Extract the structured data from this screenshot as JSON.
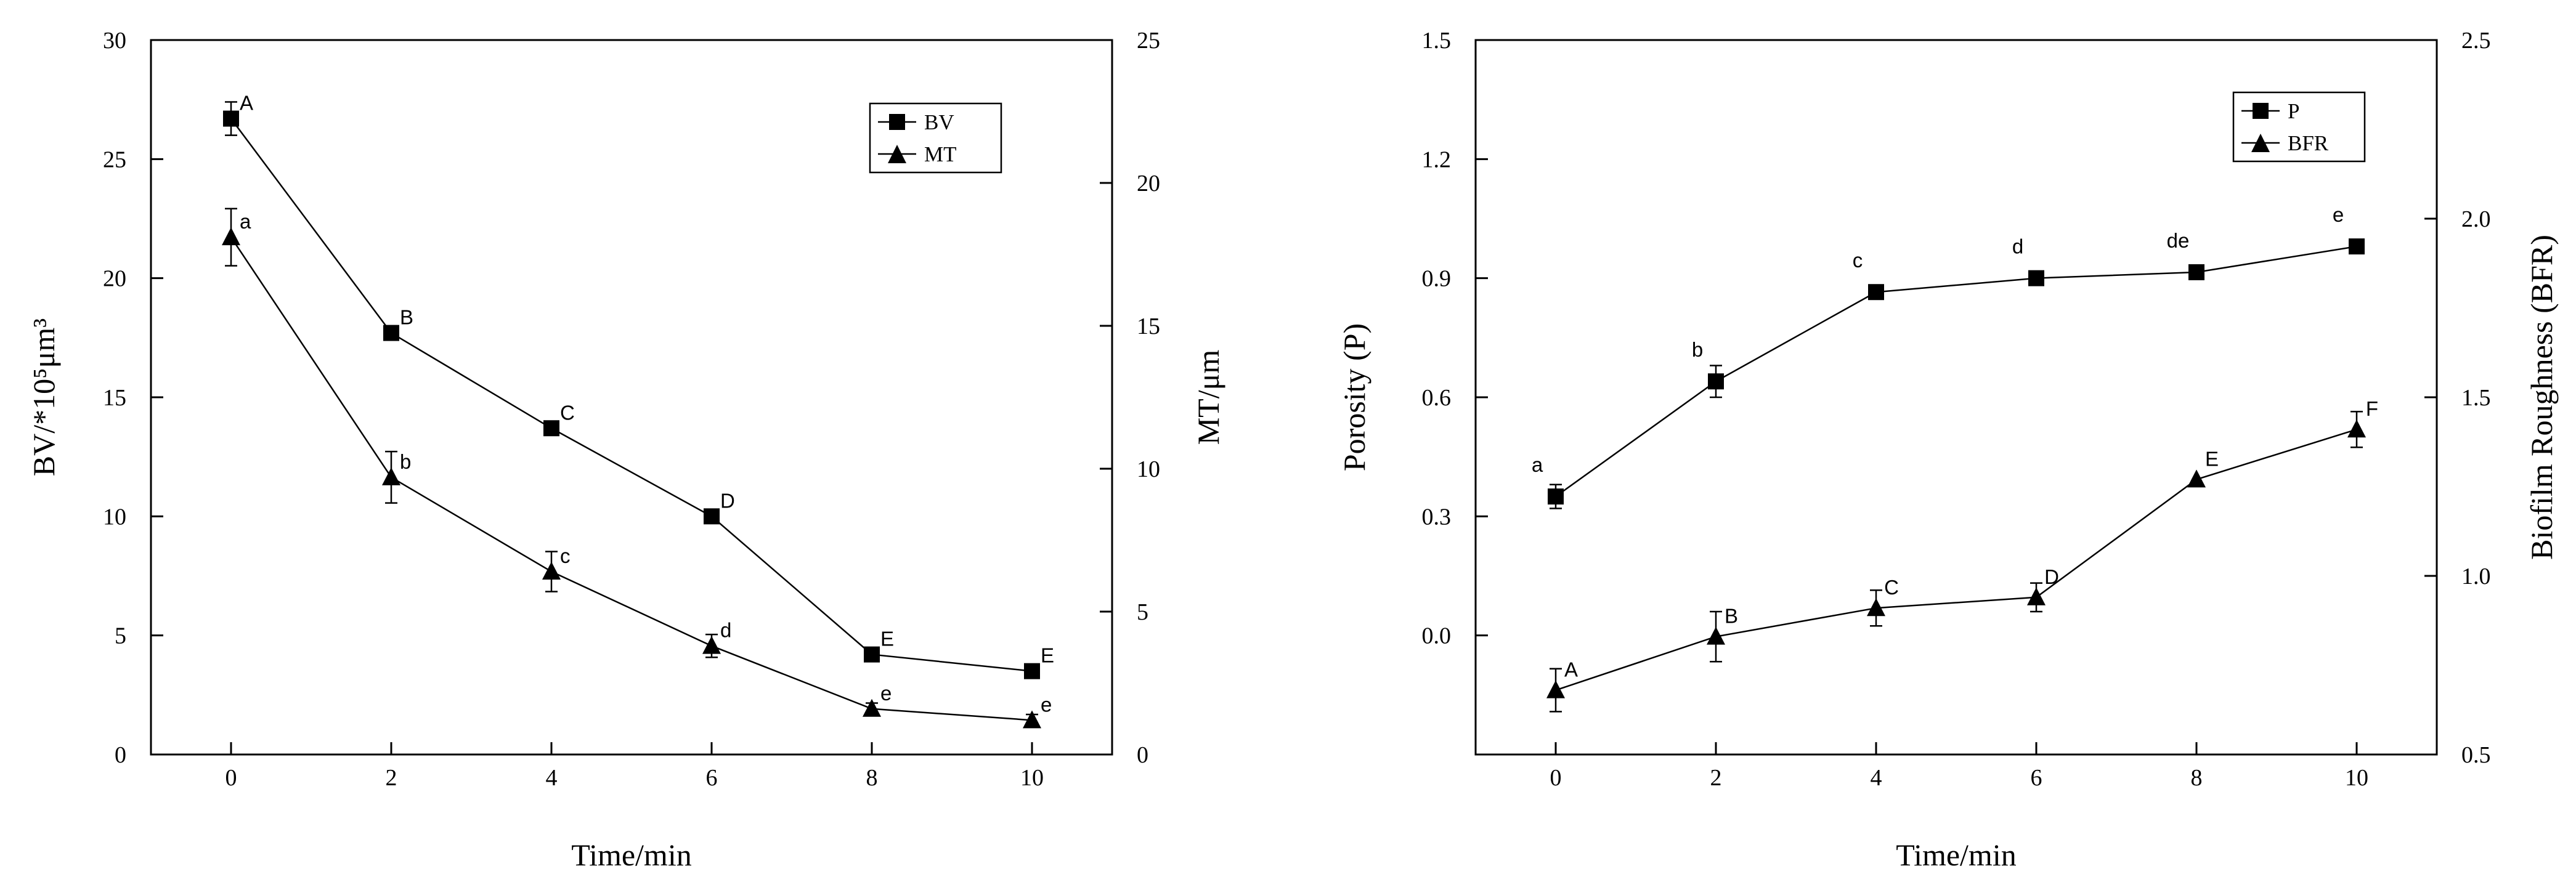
{
  "chart_data": [
    {
      "type": "line",
      "x": [
        0,
        2,
        4,
        6,
        8,
        10
      ],
      "xlabel": "Time/min",
      "xlim": [
        -1,
        11
      ],
      "xticks": [
        "0",
        "2",
        "4",
        "6",
        "8",
        "10"
      ],
      "ylabel": "BV/*10⁵μm³",
      "ylim": [
        0,
        30
      ],
      "yticks": [
        "0",
        "5",
        "10",
        "15",
        "20",
        "25",
        "30"
      ],
      "y2label": "MT/μm",
      "y2lim": [
        0,
        25
      ],
      "y2ticks": [
        "0",
        "5",
        "10",
        "15",
        "20",
        "25"
      ],
      "legend_position": "top-right",
      "series": [
        {
          "name": "BV",
          "axis": "left",
          "marker": "square",
          "values": [
            26.7,
            17.7,
            13.7,
            10.0,
            4.2,
            3.5
          ],
          "errors": [
            0.7,
            0.3,
            0.2,
            0.2,
            0.2,
            0.2
          ],
          "labels": [
            "A",
            "B",
            "C",
            "D",
            "E",
            "E"
          ]
        },
        {
          "name": "MT",
          "axis": "right",
          "marker": "triangle",
          "values": [
            18.1,
            9.7,
            6.4,
            3.8,
            1.6,
            1.2
          ],
          "errors": [
            1.0,
            0.9,
            0.7,
            0.4,
            0.2,
            0.2
          ],
          "labels": [
            "a",
            "b",
            "c",
            "d",
            "e",
            "e"
          ]
        }
      ]
    },
    {
      "type": "line",
      "x": [
        0,
        2,
        4,
        6,
        8,
        10
      ],
      "xlabel": "Time/min",
      "xlim": [
        -1,
        11
      ],
      "xticks": [
        "0",
        "2",
        "4",
        "6",
        "8",
        "10"
      ],
      "ylabel": "Porosity (P)",
      "ylim": [
        -0.3,
        1.5
      ],
      "yticks": [
        "0.0",
        "0.3",
        "0.6",
        "0.9",
        "1.2",
        "1.5"
      ],
      "y2label": "Biofilm Roughness (BFR)",
      "y2lim": [
        0.5,
        2.5
      ],
      "y2ticks": [
        "0.5",
        "1.0",
        "1.5",
        "2.0",
        "2.5"
      ],
      "legend_position": "top-right",
      "series": [
        {
          "name": "P",
          "axis": "left",
          "marker": "square",
          "values": [
            0.35,
            0.64,
            0.865,
            0.9,
            0.915,
            0.98
          ],
          "errors": [
            0.03,
            0.04,
            0.0,
            0.0,
            0.0,
            0.0
          ],
          "labels": [
            "a",
            "b",
            "c",
            "d",
            "de",
            "e"
          ]
        },
        {
          "name": "BFR",
          "axis": "right",
          "marker": "triangle",
          "values": [
            0.68,
            0.83,
            0.91,
            0.94,
            1.27,
            1.41
          ],
          "errors": [
            0.06,
            0.07,
            0.05,
            0.04,
            0.0,
            0.05
          ],
          "labels": [
            "A",
            "B",
            "C",
            "D",
            "E",
            "F"
          ]
        }
      ]
    }
  ]
}
